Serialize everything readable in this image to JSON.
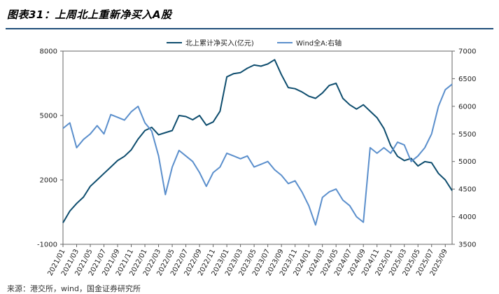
{
  "header": {
    "title": "图表31：上周北上重新净买入A股"
  },
  "footer": {
    "source": "来源：港交所，wind，国金证券研究所"
  },
  "colors": {
    "accent_rule": "#1f4e79",
    "series_northbound": "#0e4d6e",
    "series_winda": "#5b8fcc"
  },
  "chart_data": {
    "type": "line",
    "legend_position": "top",
    "grid": false,
    "y_left": {
      "ylim": [
        -1000,
        8000
      ],
      "ticks": [
        "-1000",
        "2000",
        "5000",
        "8000"
      ]
    },
    "y_right": {
      "ylim": [
        3500,
        7000
      ],
      "ticks": [
        "3500",
        "4000",
        "4500",
        "5000",
        "5500",
        "6000",
        "6500",
        "7000"
      ]
    },
    "x_ticks": [
      "2021/01",
      "2021/03",
      "2021/05",
      "2021/07",
      "2021/09",
      "2021/11",
      "2022/01",
      "2022/03",
      "2022/05",
      "2022/07",
      "2022/09",
      "2022/11",
      "2023/01",
      "2023/03",
      "2023/05",
      "2023/07",
      "2023/09",
      "2023/11",
      "2024/01",
      "2024/03",
      "2024/05",
      "2024/07",
      "2024/09",
      "2024/11",
      "2025/01",
      "2025/03",
      "2025/05",
      "2025/07",
      "2025/09"
    ],
    "x_range": [
      "2021/01",
      "2025/10"
    ],
    "series": [
      {
        "name": "北上累计净买入(亿元)",
        "axis": "left",
        "color": "#0e4d6e",
        "points": [
          [
            "2021/01",
            0
          ],
          [
            "2021/02",
            550
          ],
          [
            "2021/03",
            900
          ],
          [
            "2021/04",
            1200
          ],
          [
            "2021/05",
            1700
          ],
          [
            "2021/06",
            2000
          ],
          [
            "2021/07",
            2300
          ],
          [
            "2021/08",
            2600
          ],
          [
            "2021/09",
            2900
          ],
          [
            "2021/10",
            3100
          ],
          [
            "2021/11",
            3400
          ],
          [
            "2021/12",
            3900
          ],
          [
            "2022/01",
            4300
          ],
          [
            "2022/02",
            4450
          ],
          [
            "2022/03",
            4100
          ],
          [
            "2022/04",
            4200
          ],
          [
            "2022/05",
            4300
          ],
          [
            "2022/06",
            5000
          ],
          [
            "2022/07",
            4950
          ],
          [
            "2022/08",
            4800
          ],
          [
            "2022/09",
            5000
          ],
          [
            "2022/10",
            4550
          ],
          [
            "2022/11",
            4700
          ],
          [
            "2022/12",
            5200
          ],
          [
            "2023/01",
            6800
          ],
          [
            "2023/02",
            6950
          ],
          [
            "2023/03",
            7000
          ],
          [
            "2023/04",
            7200
          ],
          [
            "2023/05",
            7350
          ],
          [
            "2023/06",
            7300
          ],
          [
            "2023/07",
            7400
          ],
          [
            "2023/08",
            7600
          ],
          [
            "2023/09",
            6900
          ],
          [
            "2023/10",
            6300
          ],
          [
            "2023/11",
            6250
          ],
          [
            "2023/12",
            6100
          ],
          [
            "2024/01",
            5900
          ],
          [
            "2024/02",
            5800
          ],
          [
            "2024/03",
            6050
          ],
          [
            "2024/04",
            6400
          ],
          [
            "2024/05",
            6500
          ],
          [
            "2024/06",
            5800
          ],
          [
            "2024/07",
            5500
          ],
          [
            "2024/08",
            5300
          ],
          [
            "2024/09",
            5500
          ],
          [
            "2024/10",
            5200
          ],
          [
            "2024/11",
            4900
          ],
          [
            "2024/12",
            4400
          ],
          [
            "2025/01",
            3600
          ],
          [
            "2025/02",
            3100
          ],
          [
            "2025/03",
            2900
          ],
          [
            "2025/04",
            3000
          ],
          [
            "2025/05",
            2650
          ],
          [
            "2025/06",
            2850
          ],
          [
            "2025/07",
            2800
          ],
          [
            "2025/08",
            2300
          ],
          [
            "2025/09",
            2000
          ],
          [
            "2025/10",
            1500
          ]
        ]
      },
      {
        "name": "Wind全A:右轴",
        "axis": "right",
        "color": "#5b8fcc",
        "points": [
          [
            "2021/01",
            5600
          ],
          [
            "2021/02",
            5700
          ],
          [
            "2021/03",
            5250
          ],
          [
            "2021/04",
            5400
          ],
          [
            "2021/05",
            5500
          ],
          [
            "2021/06",
            5650
          ],
          [
            "2021/07",
            5500
          ],
          [
            "2021/08",
            5850
          ],
          [
            "2021/09",
            5800
          ],
          [
            "2021/10",
            5750
          ],
          [
            "2021/11",
            5900
          ],
          [
            "2021/12",
            6000
          ],
          [
            "2022/01",
            5700
          ],
          [
            "2022/02",
            5550
          ],
          [
            "2022/03",
            5100
          ],
          [
            "2022/04",
            4400
          ],
          [
            "2022/05",
            4900
          ],
          [
            "2022/06",
            5200
          ],
          [
            "2022/07",
            5100
          ],
          [
            "2022/08",
            5000
          ],
          [
            "2022/09",
            4800
          ],
          [
            "2022/10",
            4550
          ],
          [
            "2022/11",
            4800
          ],
          [
            "2022/12",
            4900
          ],
          [
            "2023/01",
            5150
          ],
          [
            "2023/02",
            5100
          ],
          [
            "2023/03",
            5050
          ],
          [
            "2023/04",
            5100
          ],
          [
            "2023/05",
            4900
          ],
          [
            "2023/06",
            4950
          ],
          [
            "2023/07",
            5000
          ],
          [
            "2023/08",
            4850
          ],
          [
            "2023/09",
            4750
          ],
          [
            "2023/10",
            4600
          ],
          [
            "2023/11",
            4650
          ],
          [
            "2023/12",
            4450
          ],
          [
            "2024/01",
            4200
          ],
          [
            "2024/02",
            3850
          ],
          [
            "2024/03",
            4350
          ],
          [
            "2024/04",
            4450
          ],
          [
            "2024/05",
            4500
          ],
          [
            "2024/06",
            4300
          ],
          [
            "2024/07",
            4200
          ],
          [
            "2024/08",
            4000
          ],
          [
            "2024/09",
            3900
          ],
          [
            "2024/10",
            5250
          ],
          [
            "2024/11",
            5150
          ],
          [
            "2024/12",
            5250
          ],
          [
            "2025/01",
            5150
          ],
          [
            "2025/02",
            5350
          ],
          [
            "2025/03",
            5300
          ],
          [
            "2025/04",
            5000
          ],
          [
            "2025/05",
            5100
          ],
          [
            "2025/06",
            5250
          ],
          [
            "2025/07",
            5500
          ],
          [
            "2025/08",
            6000
          ],
          [
            "2025/09",
            6300
          ],
          [
            "2025/10",
            6400
          ]
        ]
      }
    ]
  }
}
